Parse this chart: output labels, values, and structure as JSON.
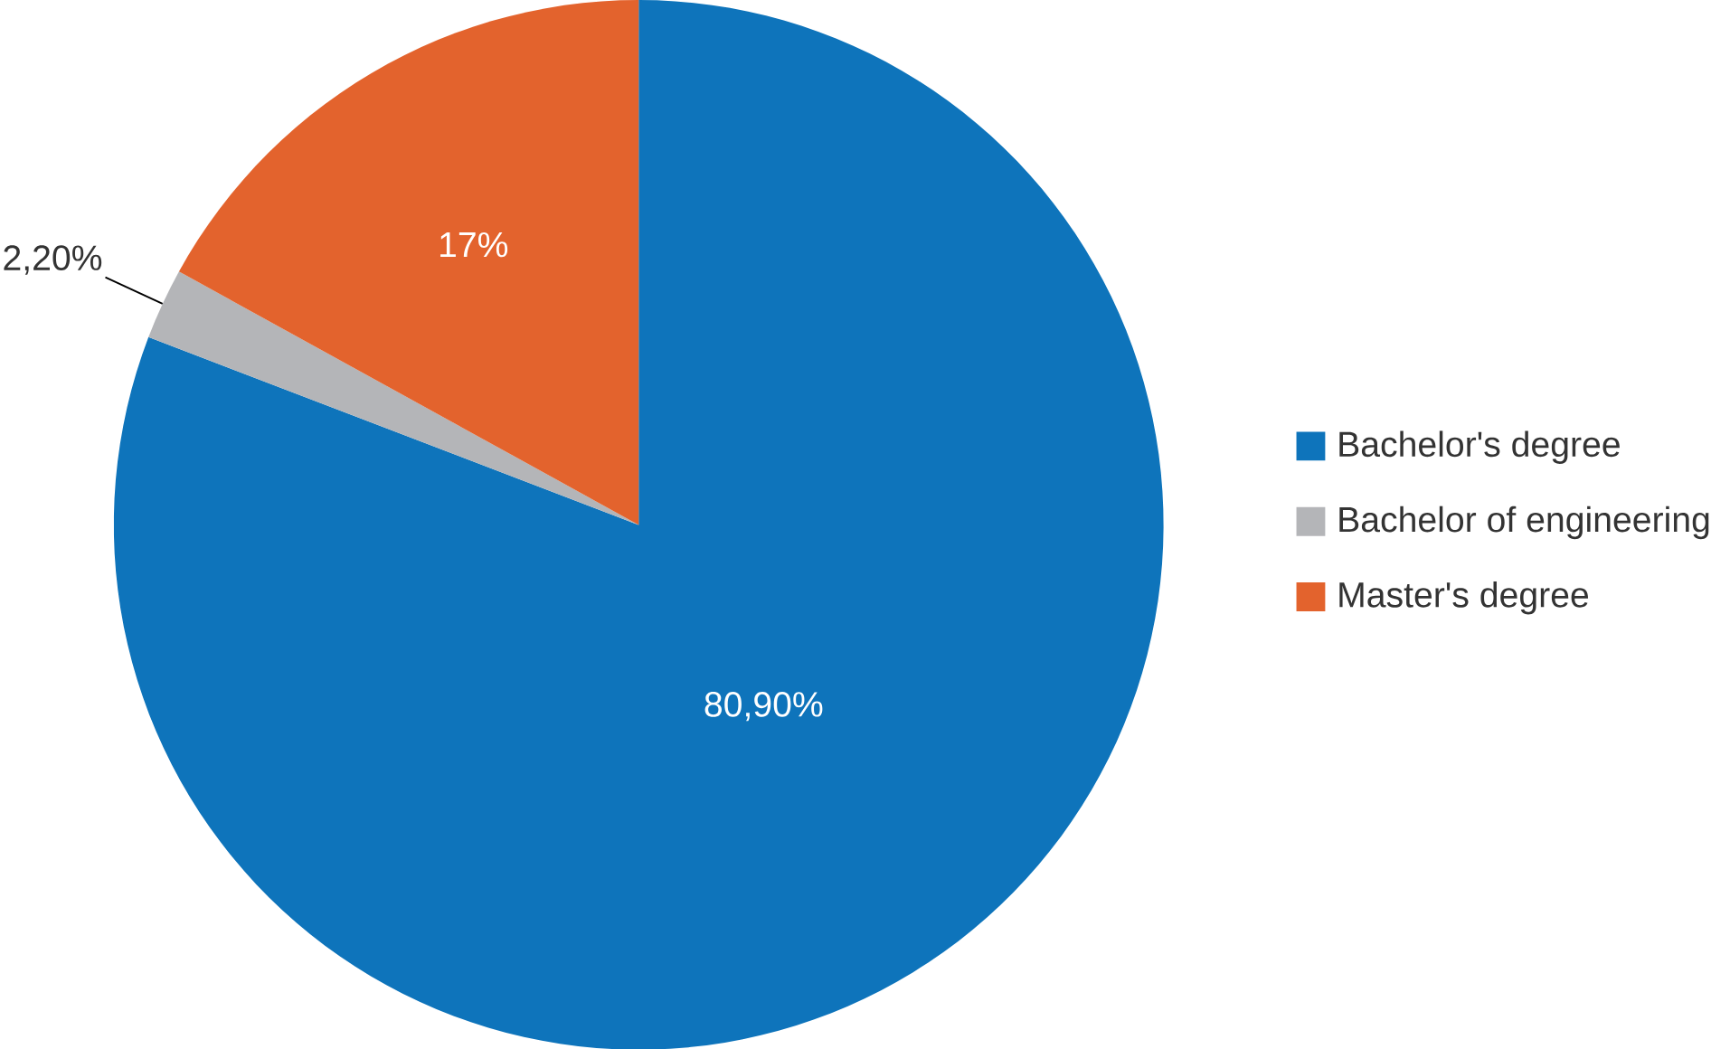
{
  "chart_data": {
    "type": "pie",
    "categories": [
      "Bachelor's degree",
      "Bachelor of engineering",
      "Master's degree"
    ],
    "values": [
      80.9,
      2.2,
      17
    ],
    "value_labels": [
      "80,90%",
      "2,20%",
      "17%"
    ],
    "colors": [
      "#0e74bb",
      "#b4b5b8",
      "#e3632d"
    ],
    "legend": "right"
  }
}
